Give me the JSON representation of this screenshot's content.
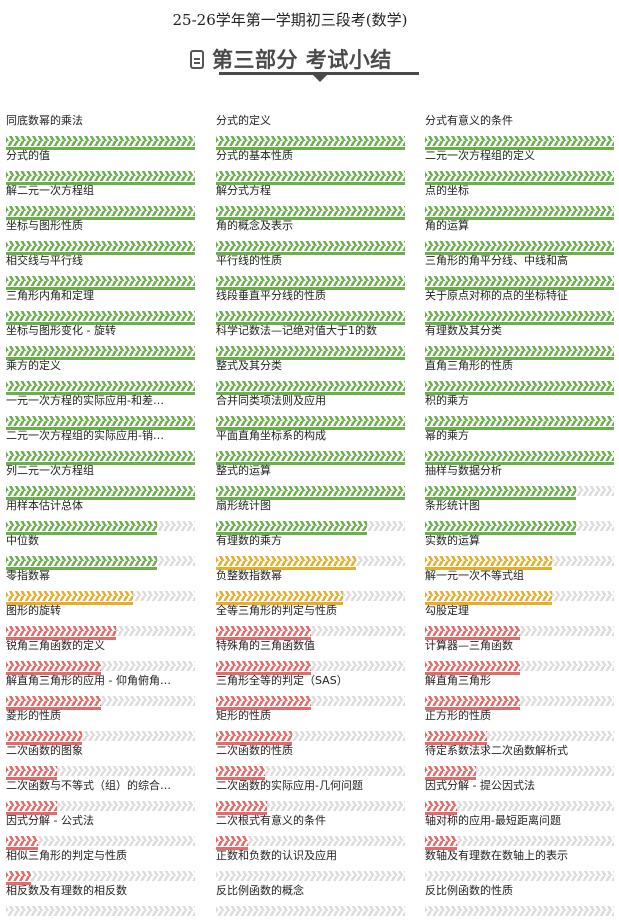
{
  "header": {
    "exam_title": "25-26学年第一学期初三段考(数学)",
    "section_title": "第三部分 考试小结",
    "section_icon": "document-icon"
  },
  "colors": {
    "high": "#6ab04c",
    "medium": "#e8ad2c",
    "low": "#e56b6b",
    "track": "#dcdcdc"
  },
  "topics": [
    [
      {
        "label": "同底数幂的乘法",
        "percent": 100,
        "level": "high"
      },
      {
        "label": "分式的定义",
        "percent": 100,
        "level": "high"
      },
      {
        "label": "分式有意义的条件",
        "percent": 100,
        "level": "high"
      }
    ],
    [
      {
        "label": "分式的值",
        "percent": 100,
        "level": "high"
      },
      {
        "label": "分式的基本性质",
        "percent": 100,
        "level": "high"
      },
      {
        "label": "二元一次方程组的定义",
        "percent": 100,
        "level": "high"
      }
    ],
    [
      {
        "label": "解二元一次方程组",
        "percent": 100,
        "level": "high"
      },
      {
        "label": "解分式方程",
        "percent": 100,
        "level": "high"
      },
      {
        "label": "点的坐标",
        "percent": 100,
        "level": "high"
      }
    ],
    [
      {
        "label": "坐标与图形性质",
        "percent": 100,
        "level": "high"
      },
      {
        "label": "角的概念及表示",
        "percent": 100,
        "level": "high"
      },
      {
        "label": "角的运算",
        "percent": 100,
        "level": "high"
      }
    ],
    [
      {
        "label": "相交线与平行线",
        "percent": 100,
        "level": "high"
      },
      {
        "label": "平行线的性质",
        "percent": 100,
        "level": "high"
      },
      {
        "label": "三角形的角平分线、中线和高",
        "percent": 100,
        "level": "high"
      }
    ],
    [
      {
        "label": "三角形内角和定理",
        "percent": 100,
        "level": "high"
      },
      {
        "label": "线段垂直平分线的性质",
        "percent": 100,
        "level": "high"
      },
      {
        "label": "关于原点对称的点的坐标特征",
        "percent": 100,
        "level": "high"
      }
    ],
    [
      {
        "label": "坐标与图形变化 - 旋转",
        "percent": 100,
        "level": "high"
      },
      {
        "label": "科学记数法—记绝对值大于1的数",
        "percent": 100,
        "level": "high"
      },
      {
        "label": "有理数及其分类",
        "percent": 100,
        "level": "high"
      }
    ],
    [
      {
        "label": "乘方的定义",
        "percent": 100,
        "level": "high"
      },
      {
        "label": "整式及其分类",
        "percent": 100,
        "level": "high"
      },
      {
        "label": "直角三角形的性质",
        "percent": 100,
        "level": "high"
      }
    ],
    [
      {
        "label": "一元一次方程的实际应用-和差…",
        "percent": 100,
        "level": "high"
      },
      {
        "label": "合并同类项法则及应用",
        "percent": 100,
        "level": "high"
      },
      {
        "label": "积的乘方",
        "percent": 100,
        "level": "high"
      }
    ],
    [
      {
        "label": "二元一次方程组的实际应用-销…",
        "percent": 100,
        "level": "high"
      },
      {
        "label": "平面直角坐标系的构成",
        "percent": 100,
        "level": "high"
      },
      {
        "label": "幂的乘方",
        "percent": 100,
        "level": "high"
      }
    ],
    [
      {
        "label": "列二元一次方程组",
        "percent": 100,
        "level": "high"
      },
      {
        "label": "整式的运算",
        "percent": 100,
        "level": "high"
      },
      {
        "label": "抽样与数据分析",
        "percent": 80,
        "level": "high"
      }
    ],
    [
      {
        "label": "用样本估计总体",
        "percent": 80,
        "level": "high"
      },
      {
        "label": "扇形统计图",
        "percent": 80,
        "level": "high"
      },
      {
        "label": "条形统计图",
        "percent": 80,
        "level": "high"
      }
    ],
    [
      {
        "label": "中位数",
        "percent": 80,
        "level": "high"
      },
      {
        "label": "有理数的乘方",
        "percent": 74,
        "level": "medium"
      },
      {
        "label": "实数的运算",
        "percent": 67,
        "level": "medium"
      }
    ],
    [
      {
        "label": "零指数幂",
        "percent": 67,
        "level": "medium"
      },
      {
        "label": "负整数指数幂",
        "percent": 67,
        "level": "medium"
      },
      {
        "label": "解一元一次不等式组",
        "percent": 67,
        "level": "medium"
      }
    ],
    [
      {
        "label": "图形的旋转",
        "percent": 58,
        "level": "low"
      },
      {
        "label": "全等三角形的判定与性质",
        "percent": 50,
        "level": "low"
      },
      {
        "label": "勾股定理",
        "percent": 50,
        "level": "low"
      }
    ],
    [
      {
        "label": "锐角三角函数的定义",
        "percent": 50,
        "level": "low"
      },
      {
        "label": "特殊角的三角函数值",
        "percent": 50,
        "level": "low"
      },
      {
        "label": "计算器—三角函数",
        "percent": 50,
        "level": "low"
      }
    ],
    [
      {
        "label": "解直角三角形的应用 - 仰角俯角…",
        "percent": 50,
        "level": "low"
      },
      {
        "label": "三角形全等的判定（SAS）",
        "percent": 50,
        "level": "low"
      },
      {
        "label": "解直角三角形",
        "percent": 50,
        "level": "low"
      }
    ],
    [
      {
        "label": "菱形的性质",
        "percent": 40,
        "level": "low"
      },
      {
        "label": "矩形的性质",
        "percent": 40,
        "level": "low"
      },
      {
        "label": "正方形的性质",
        "percent": 33,
        "level": "low"
      }
    ],
    [
      {
        "label": "二次函数的图象",
        "percent": 27,
        "level": "low"
      },
      {
        "label": "二次函数的性质",
        "percent": 26,
        "level": "low"
      },
      {
        "label": "待定系数法求二次函数解析式",
        "percent": 27,
        "level": "low"
      }
    ],
    [
      {
        "label": "二次函数与不等式（组）的综合…",
        "percent": 27,
        "level": "low"
      },
      {
        "label": "二次函数的实际应用-几何问题",
        "percent": 27,
        "level": "low"
      },
      {
        "label": "因式分解 - 提公因式法",
        "percent": 17,
        "level": "low"
      }
    ],
    [
      {
        "label": "因式分解 - 公式法",
        "percent": 17,
        "level": "low"
      },
      {
        "label": "二次根式有意义的条件",
        "percent": 17,
        "level": "low"
      },
      {
        "label": "轴对称的应用-最短距离问题",
        "percent": 17,
        "level": "low"
      }
    ],
    [
      {
        "label": "相似三角形的判定与性质",
        "percent": 13,
        "level": "low"
      },
      {
        "label": "正数和负数的认识及应用",
        "percent": 0,
        "level": "low"
      },
      {
        "label": "数轴及有理数在数轴上的表示",
        "percent": 0,
        "level": "low"
      }
    ],
    [
      {
        "label": "相反数及有理数的相反数",
        "percent": 0,
        "level": "low"
      },
      {
        "label": "反比例函数的概念",
        "percent": 0,
        "level": "low"
      },
      {
        "label": "反比例函数的性质",
        "percent": 0,
        "level": "low"
      }
    ]
  ]
}
